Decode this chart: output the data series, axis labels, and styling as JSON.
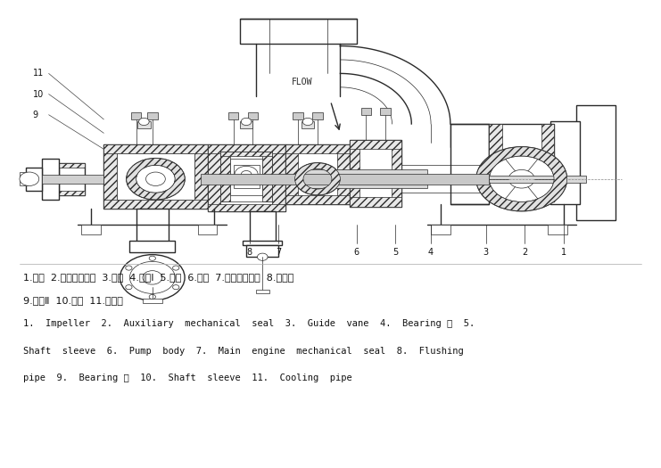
{
  "bg_color": "#ffffff",
  "line_color": "#2a2a2a",
  "text_color": "#111111",
  "chinese_line1": "1.叶轮  2.辅助机械密封  3.导叶  4.轴承Ⅰ  5.轴套  6.泵体  7.主机机械密封  8.冲洗管",
  "chinese_line2": "9.轴承Ⅱ  10.轴套  11.冷却管",
  "english_line1": "1.  Impeller  2.  Auxiliary  mechanical  seal  3.  Guide  vane  4.  Bearing Ⅰ  5.",
  "english_line2": "Shaft  sleeve  6.  Pump  body  7.  Main  engine  mechanical  seal  8.  Flushing",
  "english_line3": "pipe  9.  Bearing Ⅱ  10.  Shaft  sleeve  11.  Cooling  pipe",
  "flow_label": "FLOW",
  "figsize": [
    7.41,
    5.25
  ],
  "dpi": 100
}
